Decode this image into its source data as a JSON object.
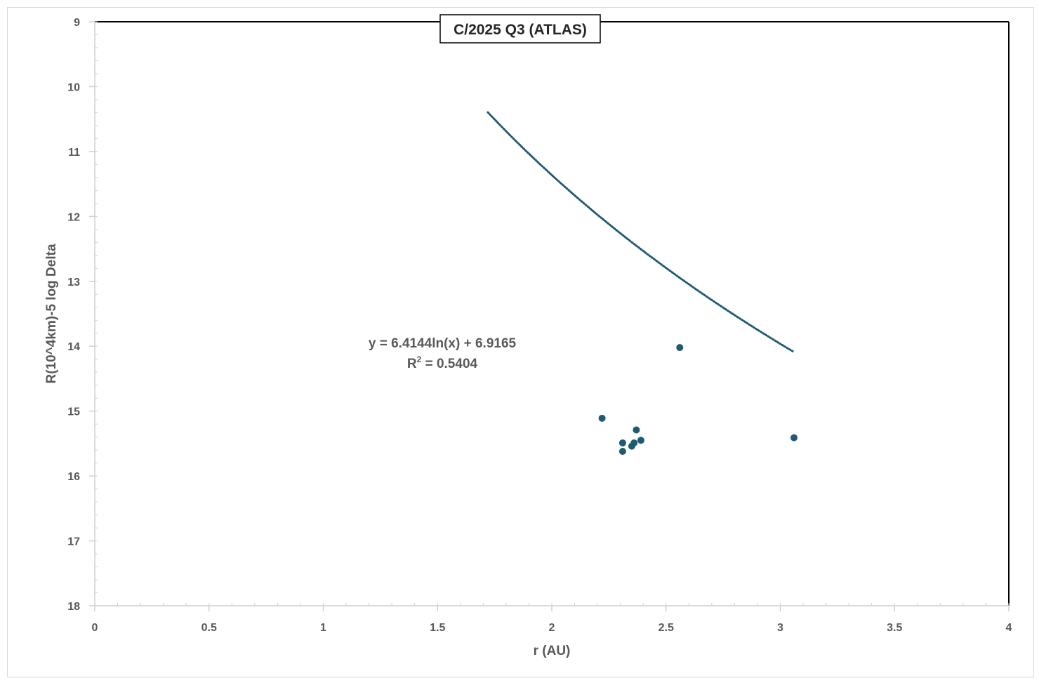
{
  "chart_data": {
    "type": "scatter",
    "title": "C/2025 Q3 (ATLAS)",
    "xlabel": "r (AU)",
    "ylabel": "R(10^4km)-5 log Delta",
    "xlim": [
      0,
      4
    ],
    "ylim": [
      9,
      18
    ],
    "y_reversed": true,
    "x_ticks": [
      "0",
      "0.5",
      "1",
      "1.5",
      "2",
      "2.5",
      "3",
      "3.5",
      "4"
    ],
    "x_tick_values": [
      0,
      0.5,
      1,
      1.5,
      2,
      2.5,
      3,
      3.5,
      4
    ],
    "y_ticks": [
      "9",
      "10",
      "11",
      "12",
      "13",
      "14",
      "15",
      "16",
      "17",
      "18"
    ],
    "y_tick_values": [
      9,
      10,
      11,
      12,
      13,
      14,
      15,
      16,
      17,
      18
    ],
    "grid": false,
    "series": [
      {
        "color": "#1f5a73",
        "points": [
          {
            "x": 2.22,
            "y": 15.11
          },
          {
            "x": 2.31,
            "y": 15.49
          },
          {
            "x": 2.31,
            "y": 15.62
          },
          {
            "x": 2.35,
            "y": 15.54
          },
          {
            "x": 2.36,
            "y": 15.49
          },
          {
            "x": 2.37,
            "y": 15.29
          },
          {
            "x": 2.39,
            "y": 15.45
          },
          {
            "x": 2.56,
            "y": 14.02
          },
          {
            "x": 3.06,
            "y": 15.41
          }
        ]
      }
    ],
    "trendline": {
      "type": "logarithmic",
      "a": 6.4144,
      "b": 6.9165,
      "x_range": [
        1.72,
        3.06
      ],
      "equation_label": "y = 6.4144ln(x) + 6.9165",
      "r2_prefix": "R",
      "r2_sup": "2",
      "r2_value": " = 0.5404",
      "color": "#1f5a73"
    }
  }
}
